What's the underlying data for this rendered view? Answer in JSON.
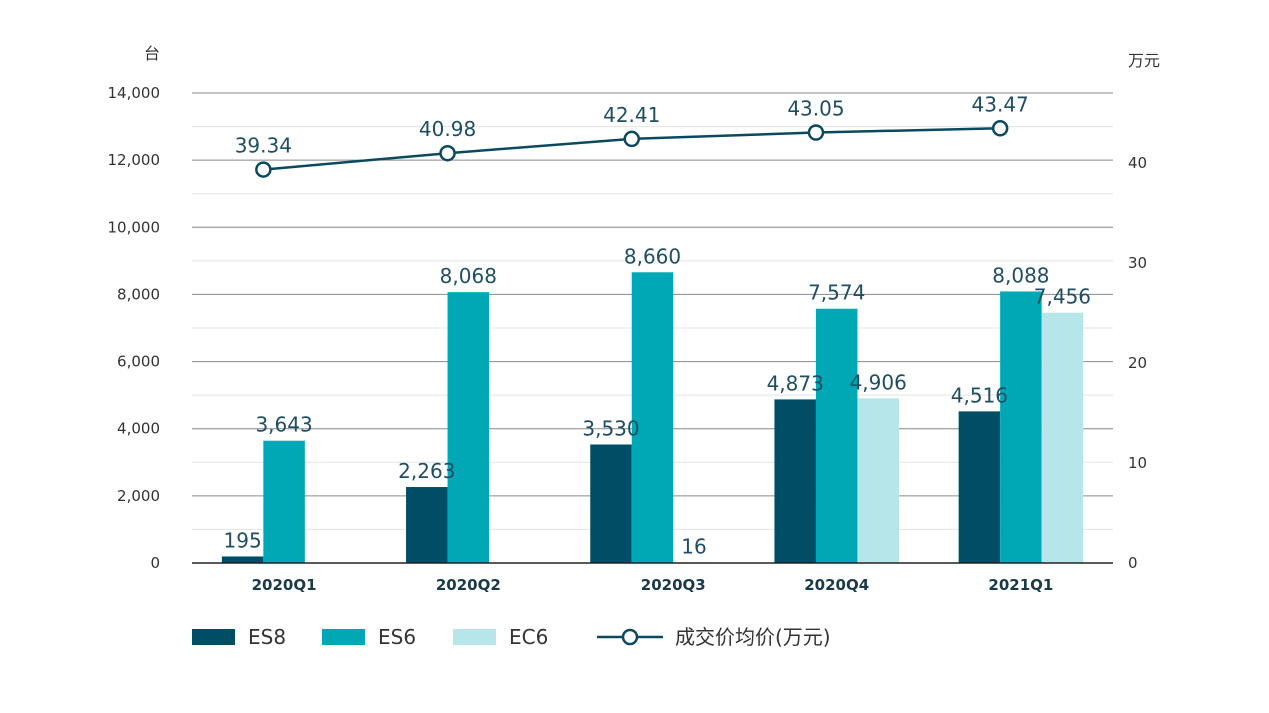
{
  "chart_data": {
    "type": "bar",
    "y_unit_left": "台",
    "y_unit_right": "万元",
    "categories": [
      "2020Q1",
      "2020Q2",
      "2020Q3",
      "2020Q4",
      "2021Q1"
    ],
    "series": [
      {
        "name": "ES8",
        "type": "bar",
        "color": "#004d66",
        "values": [
          195,
          2263,
          3530,
          4873,
          4516
        ],
        "labels": [
          "195",
          "2,263",
          "3,530",
          "4,873",
          "4,516"
        ]
      },
      {
        "name": "ES6",
        "type": "bar",
        "color": "#00a8b5",
        "values": [
          3643,
          8068,
          8660,
          7574,
          8088
        ],
        "labels": [
          "3,643",
          "8,068",
          "8,660",
          "7,574",
          "8,088"
        ]
      },
      {
        "name": "EC6",
        "type": "bar",
        "color": "#b6e6ea",
        "values": [
          null,
          null,
          16,
          4906,
          7456
        ],
        "labels": [
          null,
          null,
          "16",
          "4,906",
          "7,456"
        ]
      },
      {
        "name": "成交价均价(万元)",
        "type": "line",
        "axis": "right",
        "color": "#0b4a5e",
        "values": [
          39.34,
          40.98,
          42.41,
          43.05,
          43.47
        ],
        "labels": [
          "39.34",
          "40.98",
          "42.41",
          "43.05",
          "43.47"
        ]
      }
    ],
    "ylim_left": [
      0,
      14000
    ],
    "yticks_left": [
      "0",
      "2,000",
      "4,000",
      "6,000",
      "8,000",
      "10,000",
      "12,000",
      "14,000"
    ],
    "ylim_right": [
      0,
      47
    ],
    "yticks_right": [
      "0",
      "10",
      "20",
      "30",
      "40"
    ],
    "grid": true,
    "legend_position": "bottom-left"
  }
}
